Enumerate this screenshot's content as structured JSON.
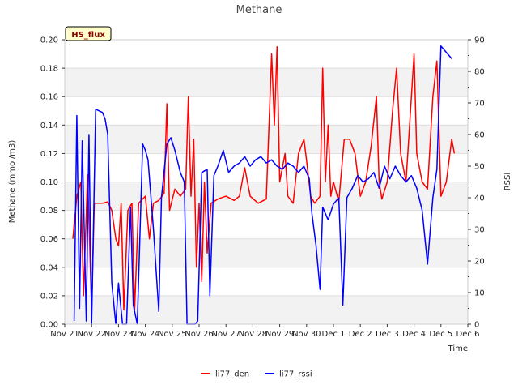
{
  "chart_data": {
    "type": "line",
    "title": "Methane",
    "badge": "HS_flux",
    "xlabel": "Time",
    "ylabel": "Methane (mmol/m3)",
    "y2label": "RSSI",
    "xlim": [
      21,
      36
    ],
    "ylim": [
      0,
      0.2
    ],
    "y2lim": [
      0,
      90
    ],
    "x_ticks": [
      {
        "x": 21,
        "label": "Nov 21"
      },
      {
        "x": 22,
        "label": "Nov 22"
      },
      {
        "x": 23,
        "label": "Nov 23"
      },
      {
        "x": 24,
        "label": "Nov 24"
      },
      {
        "x": 25,
        "label": "Nov 25"
      },
      {
        "x": 26,
        "label": "Nov 26"
      },
      {
        "x": 27,
        "label": "Nov 27"
      },
      {
        "x": 28,
        "label": "Nov 28"
      },
      {
        "x": 29,
        "label": "Nov 29"
      },
      {
        "x": 30,
        "label": "Nov 30"
      },
      {
        "x": 31,
        "label": "Dec 1"
      },
      {
        "x": 32,
        "label": "Dec 2"
      },
      {
        "x": 33,
        "label": "Dec 3"
      },
      {
        "x": 34,
        "label": "Dec 4"
      },
      {
        "x": 35,
        "label": "Dec 5"
      },
      {
        "x": 36,
        "label": "Dec 6"
      }
    ],
    "y_ticks": [
      {
        "v": 0.0,
        "label": "0.00"
      },
      {
        "v": 0.02,
        "label": "0.02"
      },
      {
        "v": 0.04,
        "label": "0.04"
      },
      {
        "v": 0.06,
        "label": "0.06"
      },
      {
        "v": 0.08,
        "label": "0.08"
      },
      {
        "v": 0.1,
        "label": "0.10"
      },
      {
        "v": 0.12,
        "label": "0.12"
      },
      {
        "v": 0.14,
        "label": "0.14"
      },
      {
        "v": 0.16,
        "label": "0.16"
      },
      {
        "v": 0.18,
        "label": "0.18"
      },
      {
        "v": 0.2,
        "label": "0.20"
      }
    ],
    "y2_ticks": [
      {
        "v": 0,
        "label": "0"
      },
      {
        "v": 10,
        "label": "10"
      },
      {
        "v": 20,
        "label": "20"
      },
      {
        "v": 30,
        "label": "30"
      },
      {
        "v": 40,
        "label": "40"
      },
      {
        "v": 50,
        "label": "50"
      },
      {
        "v": 60,
        "label": "60"
      },
      {
        "v": 70,
        "label": "70"
      },
      {
        "v": 80,
        "label": "80"
      },
      {
        "v": 90,
        "label": "90"
      }
    ],
    "legend_position": "bottom-center",
    "series": [
      {
        "name": "li77_den",
        "axis": "left",
        "color": "#ff0000",
        "points": [
          [
            21.3,
            0.06
          ],
          [
            21.45,
            0.09
          ],
          [
            21.6,
            0.1
          ],
          [
            21.7,
            0.02
          ],
          [
            21.85,
            0.105
          ],
          [
            22.0,
            0.01
          ],
          [
            22.1,
            0.085
          ],
          [
            22.4,
            0.085
          ],
          [
            22.6,
            0.086
          ],
          [
            22.75,
            0.08
          ],
          [
            22.9,
            0.06
          ],
          [
            23.0,
            0.055
          ],
          [
            23.1,
            0.085
          ],
          [
            23.2,
            0.01
          ],
          [
            23.35,
            0.08
          ],
          [
            23.5,
            0.085
          ],
          [
            23.6,
            0.01
          ],
          [
            23.75,
            0.085
          ],
          [
            24.0,
            0.09
          ],
          [
            24.15,
            0.06
          ],
          [
            24.3,
            0.085
          ],
          [
            24.5,
            0.087
          ],
          [
            24.7,
            0.092
          ],
          [
            24.8,
            0.155
          ],
          [
            24.9,
            0.08
          ],
          [
            25.1,
            0.095
          ],
          [
            25.3,
            0.09
          ],
          [
            25.5,
            0.095
          ],
          [
            25.6,
            0.16
          ],
          [
            25.7,
            0.09
          ],
          [
            25.8,
            0.13
          ],
          [
            25.9,
            0.04
          ],
          [
            26.0,
            0.085
          ],
          [
            26.1,
            0.03
          ],
          [
            26.2,
            0.1
          ],
          [
            26.3,
            0.05
          ],
          [
            26.45,
            0.085
          ],
          [
            26.7,
            0.088
          ],
          [
            27.0,
            0.09
          ],
          [
            27.3,
            0.087
          ],
          [
            27.5,
            0.09
          ],
          [
            27.7,
            0.11
          ],
          [
            27.9,
            0.09
          ],
          [
            28.2,
            0.085
          ],
          [
            28.5,
            0.088
          ],
          [
            28.7,
            0.19
          ],
          [
            28.8,
            0.14
          ],
          [
            28.9,
            0.195
          ],
          [
            29.0,
            0.1
          ],
          [
            29.2,
            0.12
          ],
          [
            29.3,
            0.09
          ],
          [
            29.5,
            0.085
          ],
          [
            29.7,
            0.12
          ],
          [
            29.9,
            0.13
          ],
          [
            30.0,
            0.115
          ],
          [
            30.15,
            0.09
          ],
          [
            30.3,
            0.085
          ],
          [
            30.5,
            0.09
          ],
          [
            30.6,
            0.18
          ],
          [
            30.7,
            0.1
          ],
          [
            30.8,
            0.14
          ],
          [
            30.9,
            0.09
          ],
          [
            31.0,
            0.1
          ],
          [
            31.2,
            0.086
          ],
          [
            31.4,
            0.13
          ],
          [
            31.6,
            0.13
          ],
          [
            31.8,
            0.12
          ],
          [
            32.0,
            0.09
          ],
          [
            32.2,
            0.1
          ],
          [
            32.4,
            0.125
          ],
          [
            32.6,
            0.16
          ],
          [
            32.7,
            0.1
          ],
          [
            32.8,
            0.088
          ],
          [
            33.0,
            0.1
          ],
          [
            33.2,
            0.15
          ],
          [
            33.35,
            0.18
          ],
          [
            33.5,
            0.12
          ],
          [
            33.7,
            0.1
          ],
          [
            33.9,
            0.16
          ],
          [
            34.0,
            0.19
          ],
          [
            34.1,
            0.12
          ],
          [
            34.3,
            0.1
          ],
          [
            34.5,
            0.095
          ],
          [
            34.7,
            0.16
          ],
          [
            34.85,
            0.185
          ],
          [
            35.0,
            0.09
          ],
          [
            35.2,
            0.1
          ],
          [
            35.4,
            0.13
          ],
          [
            35.5,
            0.12
          ]
        ]
      },
      {
        "name": "li77_rssi",
        "axis": "right",
        "color": "#0000ff",
        "points": [
          [
            21.35,
            1
          ],
          [
            21.45,
            66
          ],
          [
            21.55,
            5
          ],
          [
            21.65,
            58
          ],
          [
            21.8,
            1
          ],
          [
            21.9,
            60
          ],
          [
            22.0,
            0
          ],
          [
            22.15,
            68
          ],
          [
            22.4,
            67
          ],
          [
            22.5,
            65
          ],
          [
            22.6,
            60
          ],
          [
            22.75,
            13
          ],
          [
            22.9,
            0
          ],
          [
            23.0,
            13
          ],
          [
            23.15,
            0
          ],
          [
            23.3,
            0
          ],
          [
            23.45,
            37
          ],
          [
            23.55,
            6
          ],
          [
            23.7,
            0
          ],
          [
            23.9,
            57
          ],
          [
            24.0,
            55
          ],
          [
            24.1,
            52
          ],
          [
            24.3,
            30
          ],
          [
            24.5,
            4
          ],
          [
            24.6,
            40
          ],
          [
            24.8,
            57
          ],
          [
            24.95,
            59
          ],
          [
            25.1,
            55
          ],
          [
            25.3,
            48
          ],
          [
            25.45,
            45
          ],
          [
            25.55,
            0
          ],
          [
            25.7,
            0
          ],
          [
            25.85,
            0
          ],
          [
            25.95,
            1
          ],
          [
            26.1,
            48
          ],
          [
            26.3,
            49
          ],
          [
            26.4,
            9
          ],
          [
            26.55,
            47
          ],
          [
            26.7,
            50
          ],
          [
            26.9,
            55
          ],
          [
            27.1,
            48
          ],
          [
            27.3,
            50
          ],
          [
            27.5,
            51
          ],
          [
            27.7,
            53
          ],
          [
            27.9,
            50
          ],
          [
            28.1,
            52
          ],
          [
            28.3,
            53
          ],
          [
            28.5,
            51
          ],
          [
            28.7,
            52
          ],
          [
            28.9,
            50
          ],
          [
            29.1,
            49
          ],
          [
            29.3,
            51
          ],
          [
            29.5,
            50
          ],
          [
            29.7,
            48
          ],
          [
            29.9,
            50
          ],
          [
            30.1,
            46
          ],
          [
            30.2,
            35
          ],
          [
            30.35,
            25
          ],
          [
            30.5,
            11
          ],
          [
            30.6,
            37
          ],
          [
            30.8,
            33
          ],
          [
            31.0,
            38
          ],
          [
            31.2,
            40
          ],
          [
            31.35,
            6
          ],
          [
            31.5,
            40
          ],
          [
            31.7,
            43
          ],
          [
            31.9,
            47
          ],
          [
            32.1,
            45
          ],
          [
            32.3,
            46
          ],
          [
            32.5,
            48
          ],
          [
            32.7,
            43
          ],
          [
            32.9,
            50
          ],
          [
            33.1,
            46
          ],
          [
            33.3,
            50
          ],
          [
            33.5,
            47
          ],
          [
            33.7,
            45
          ],
          [
            33.9,
            47
          ],
          [
            34.1,
            43
          ],
          [
            34.3,
            36
          ],
          [
            34.5,
            19
          ],
          [
            34.7,
            40
          ],
          [
            34.85,
            49
          ],
          [
            35.0,
            88
          ],
          [
            35.2,
            86
          ],
          [
            35.4,
            84
          ]
        ]
      }
    ]
  }
}
